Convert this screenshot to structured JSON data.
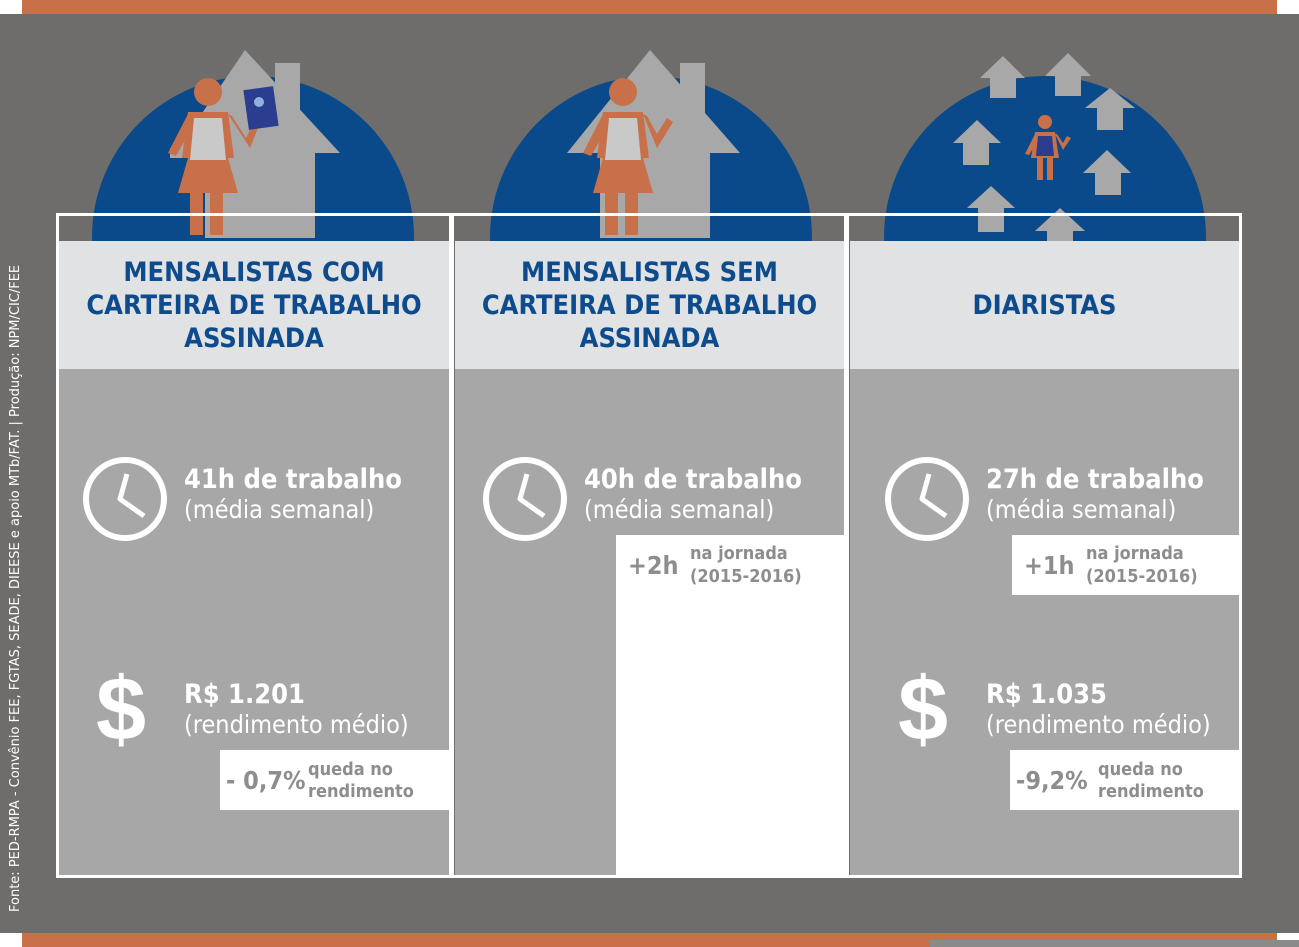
{
  "source": "Fonte: PED-RMPA - Convênio FEE, FGTAS, SEADE, DIEESE e apoio MTb/FAT. | Produção: NPM/CIC/FEE",
  "colors": {
    "accent_orange": "#c8704a",
    "navy": "#0a4a8a",
    "panel_gray": "#6f6d6b",
    "column_gray": "#a7a7a7",
    "header_bg": "#e1e2e3",
    "header_text": "#0d4b8c"
  },
  "columns": [
    {
      "icon": "woman-with-work-card-icon",
      "title_lines": [
        "MENSALISTAS COM",
        "CARTEIRA DE TRABALHO",
        "ASSINADA"
      ],
      "hours": "41h de trabalho",
      "hours_sub": "(média semanal)",
      "income": "R$ 1.201",
      "income_sub": "(rendimento médio)",
      "income_change": "- 0,7%",
      "income_change_label_1": "queda no",
      "income_change_label_2": "rendimento"
    },
    {
      "icon": "woman-waving-icon",
      "title_lines": [
        "MENSALISTAS SEM",
        "CARTEIRA DE TRABALHO",
        "ASSINADA"
      ],
      "hours": "40h de trabalho",
      "hours_sub": "(média semanal)",
      "hours_change": "+2h",
      "hours_change_label_1": "na jornada",
      "hours_change_label_2": "(2015-2016)"
    },
    {
      "icon": "woman-among-houses-icon",
      "title_lines": [
        "DIARISTAS"
      ],
      "hours": "27h de trabalho",
      "hours_sub": "(média semanal)",
      "hours_change": "+1h",
      "hours_change_label_1": "na jornada",
      "hours_change_label_2": "(2015-2016)",
      "income": "R$ 1.035",
      "income_sub": "(rendimento médio)",
      "income_change": "-9,2%",
      "income_change_label_1": "queda no",
      "income_change_label_2": "rendimento"
    }
  ]
}
